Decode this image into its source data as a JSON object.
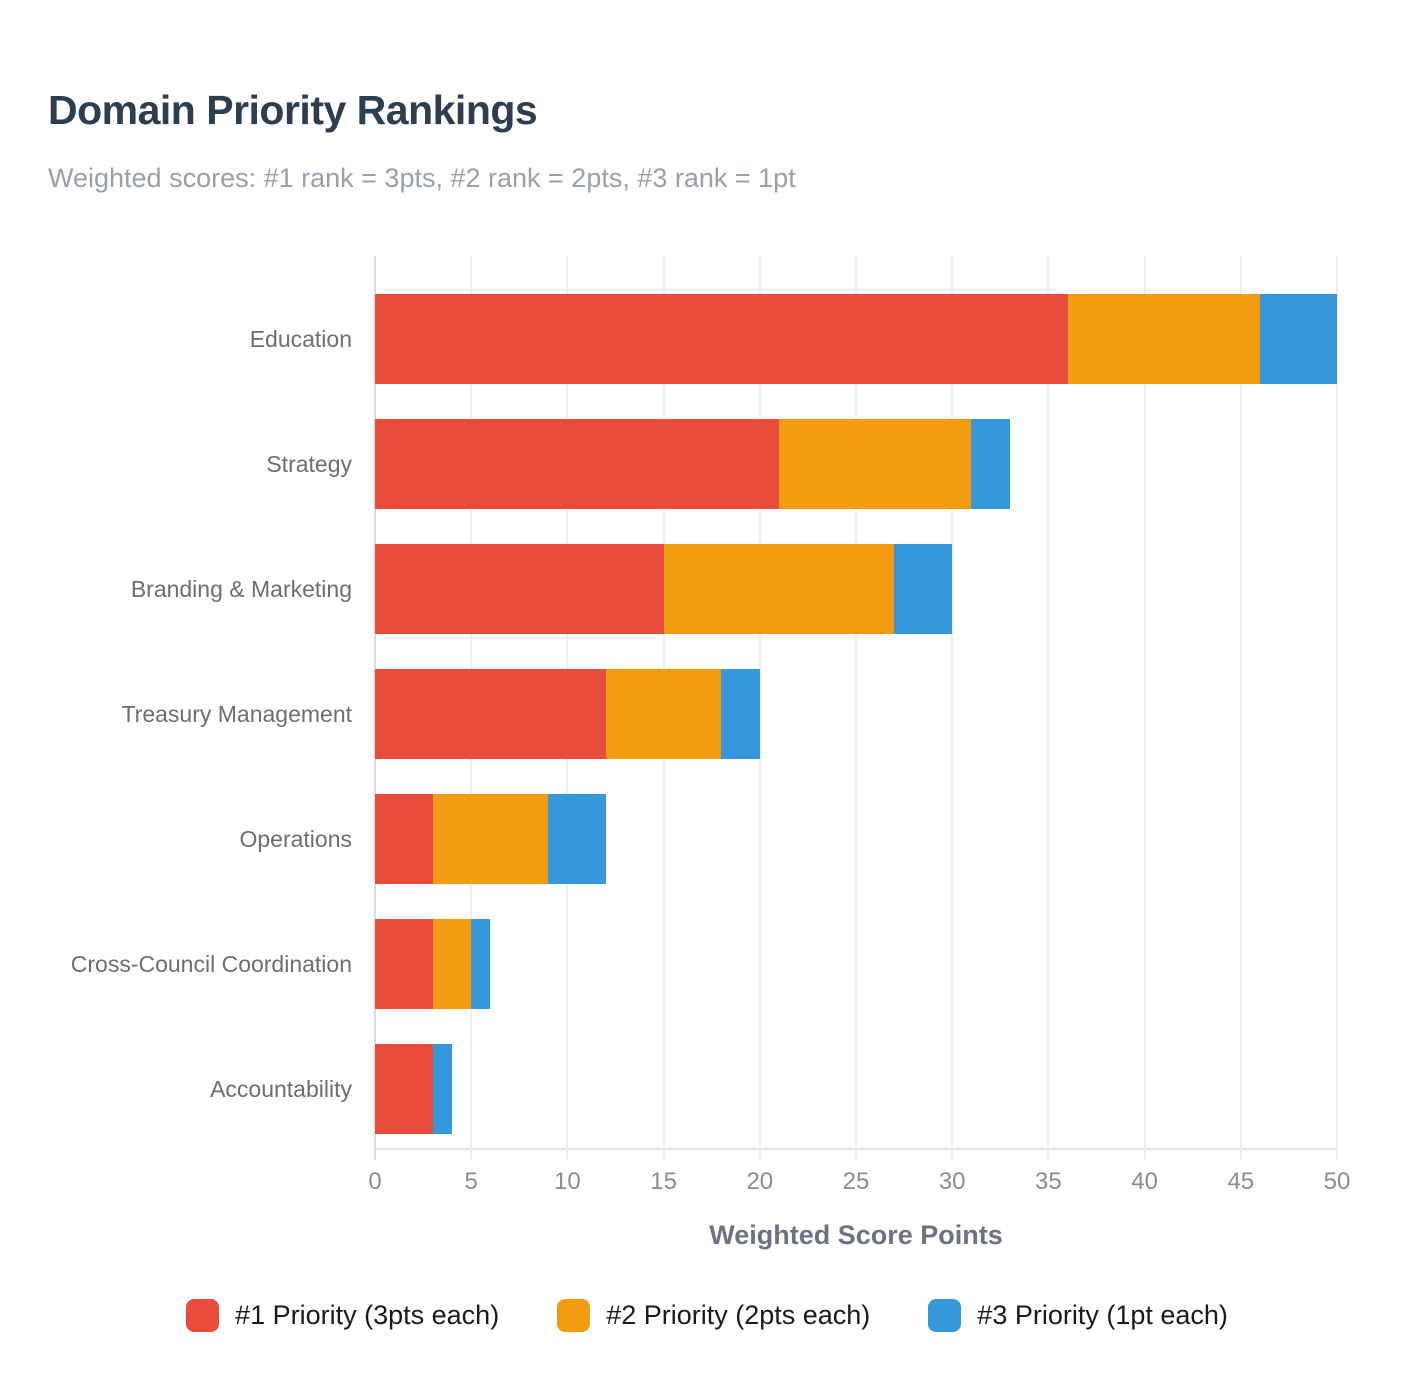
{
  "header": {
    "title": "Domain Priority Rankings",
    "subtitle": "Weighted scores: #1 rank = 3pts, #2 rank = 2pts, #3 rank = 1pt"
  },
  "chart_data": {
    "type": "bar",
    "orientation": "horizontal",
    "stacked": true,
    "title": "Domain Priority Rankings",
    "subtitle": "Weighted scores: #1 rank = 3pts, #2 rank = 2pts, #3 rank = 1pt",
    "categories": [
      "Education",
      "Strategy",
      "Branding & Marketing",
      "Treasury Management",
      "Operations",
      "Cross-Council Coordination",
      "Accountability"
    ],
    "series": [
      {
        "name": "#1 Priority (3pts each)",
        "color": "#e74c3c",
        "values": [
          36,
          21,
          15,
          12,
          3,
          3,
          3
        ]
      },
      {
        "name": "#2 Priority (2pts each)",
        "color": "#f39c12",
        "values": [
          10,
          10,
          12,
          6,
          6,
          2,
          0
        ]
      },
      {
        "name": "#3 Priority (1pt each)",
        "color": "#3498db",
        "values": [
          4,
          2,
          3,
          2,
          3,
          1,
          1
        ]
      }
    ],
    "totals": [
      50,
      33,
      30,
      20,
      12,
      6,
      4
    ],
    "xlabel": "Weighted Score Points",
    "xlim": [
      0,
      50
    ],
    "xticks": [
      0,
      5,
      10,
      15,
      20,
      25,
      30,
      35,
      40,
      45,
      50
    ],
    "grid": true,
    "legend_position": "bottom",
    "colors": {
      "grid": "#ececec",
      "axis": "#e4e4e4",
      "title": "#2d3e50",
      "subtitle": "#97a1a9",
      "tick": "#8c8c8c",
      "category": "#6e6e6e"
    }
  }
}
